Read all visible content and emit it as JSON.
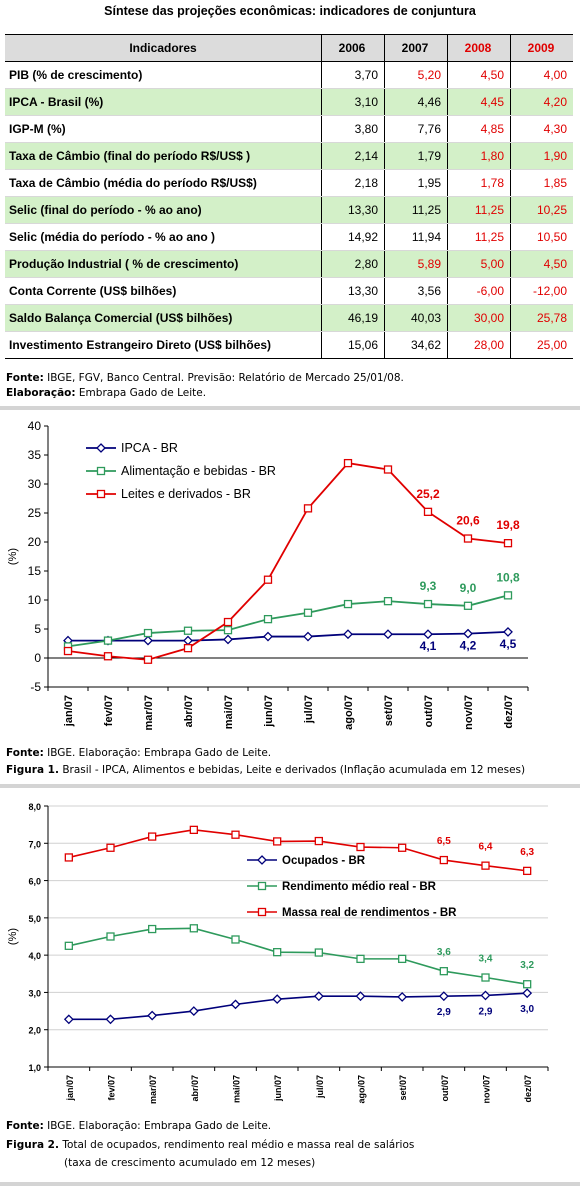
{
  "table": {
    "title": "Síntese das projeções econômicas: indicadores de conjuntura",
    "header": {
      "label": "Indicadores",
      "years": [
        "2006",
        "2007",
        "2008",
        "2009"
      ]
    },
    "rows": [
      {
        "label": "PIB (% de crescimento)",
        "values": [
          "3,70",
          "5,20",
          "4,50",
          "4,00"
        ],
        "red": [
          false,
          true,
          true,
          true
        ],
        "shaded": false
      },
      {
        "label": "IPCA - Brasil (%)",
        "values": [
          "3,10",
          "4,46",
          "4,45",
          "4,20"
        ],
        "red": [
          false,
          false,
          true,
          true
        ],
        "shaded": true
      },
      {
        "label": "IGP-M (%)",
        "values": [
          "3,80",
          "7,76",
          "4,85",
          "4,30"
        ],
        "red": [
          false,
          false,
          true,
          true
        ],
        "shaded": false
      },
      {
        "label": "Taxa de Câmbio (final do período R$/US$ )",
        "values": [
          "2,14",
          "1,79",
          "1,80",
          "1,90"
        ],
        "red": [
          false,
          false,
          true,
          true
        ],
        "shaded": true
      },
      {
        "label": "Taxa de Câmbio (média do período R$/US$)",
        "values": [
          "2,18",
          "1,95",
          "1,78",
          "1,85"
        ],
        "red": [
          false,
          false,
          true,
          true
        ],
        "shaded": false
      },
      {
        "label": "Selic (final do período - % ao ano)",
        "values": [
          "13,30",
          "11,25",
          "11,25",
          "10,25"
        ],
        "red": [
          false,
          false,
          true,
          true
        ],
        "shaded": true
      },
      {
        "label": "Selic (média do período - % ao ano )",
        "values": [
          "14,92",
          "11,94",
          "11,25",
          "10,50"
        ],
        "red": [
          false,
          false,
          true,
          true
        ],
        "shaded": false
      },
      {
        "label": "Produção Industrial ( % de crescimento)",
        "values": [
          "2,80",
          "5,89",
          "5,00",
          "4,50"
        ],
        "red": [
          false,
          true,
          true,
          true
        ],
        "shaded": true
      },
      {
        "label": "Conta Corrente (US$ bilhões)",
        "values": [
          "13,30",
          "3,56",
          "-6,00",
          "-12,00"
        ],
        "red": [
          false,
          false,
          true,
          true
        ],
        "shaded": false
      },
      {
        "label": "Saldo Balança Comercial (US$ bilhões)",
        "values": [
          "46,19",
          "40,03",
          "30,00",
          "25,78"
        ],
        "red": [
          false,
          false,
          true,
          true
        ],
        "shaded": true
      },
      {
        "label": "Investimento Estrangeiro Direto (US$ bilhões)",
        "values": [
          "15,06",
          "34,62",
          "28,00",
          "25,00"
        ],
        "red": [
          false,
          false,
          true,
          true
        ],
        "shaded": false
      }
    ],
    "source_label": "Fonte:",
    "source_text": " IBGE, FGV, Banco Central. Previsão: Relatório de Mercado 25/01/08.",
    "elab_label": "Elaboração:",
    "elab_text": " Embrapa Gado de Leite."
  },
  "colors": {
    "red": "#e00000",
    "green": "#2e9a5c",
    "navy": "#00007a",
    "grid": "#d0d0d0"
  },
  "chart_data": [
    {
      "type": "line",
      "ylabel": "(%)",
      "ylim": [
        -5,
        40
      ],
      "yticks": [
        -5,
        0,
        5,
        10,
        15,
        20,
        25,
        30,
        35,
        40
      ],
      "categories": [
        "jan/07",
        "fev/07",
        "mar/07",
        "abr/07",
        "mai/07",
        "jun/07",
        "jul/07",
        "ago/07",
        "set/07",
        "out/07",
        "nov/07",
        "dez/07"
      ],
      "series": [
        {
          "name": "IPCA - BR",
          "color": "#00007a",
          "marker": "diamond",
          "values": [
            3.0,
            3.0,
            3.0,
            3.0,
            3.2,
            3.7,
            3.7,
            4.1,
            4.1,
            4.1,
            4.2,
            4.5
          ]
        },
        {
          "name": "Alimentação e bebidas - BR",
          "color": "#2e9a5c",
          "marker": "square",
          "values": [
            2.0,
            3.0,
            4.3,
            4.7,
            4.8,
            6.7,
            7.8,
            9.3,
            9.8,
            9.3,
            9.0,
            10.8
          ]
        },
        {
          "name": "Leites e derivados - BR",
          "color": "#e00000",
          "marker": "square",
          "values": [
            1.2,
            0.3,
            -0.3,
            1.7,
            6.2,
            13.5,
            25.8,
            33.6,
            32.5,
            25.2,
            20.6,
            19.8
          ]
        }
      ],
      "annotations": [
        {
          "series": 2,
          "index": 9,
          "text": "25,2"
        },
        {
          "series": 2,
          "index": 10,
          "text": "20,6"
        },
        {
          "series": 2,
          "index": 11,
          "text": "19,8"
        },
        {
          "series": 1,
          "index": 9,
          "text": "9,3"
        },
        {
          "series": 1,
          "index": 10,
          "text": "9,0"
        },
        {
          "series": 1,
          "index": 11,
          "text": "10,8"
        },
        {
          "series": 0,
          "index": 9,
          "text": "4,1"
        },
        {
          "series": 0,
          "index": 10,
          "text": "4,2"
        },
        {
          "series": 0,
          "index": 11,
          "text": "4,5"
        }
      ],
      "legend_position": "top-left",
      "grid": false,
      "source_label": "Fonte:",
      "source_text": " IBGE. Elaboração: Embrapa Gado de Leite.",
      "caption_label": "Figura 1.",
      "caption_text": " Brasil - IPCA, Alimentos e bebidas, Leite e derivados (Inflação acumulada em 12 meses)"
    },
    {
      "type": "line",
      "ylabel": "(%)",
      "ylim": [
        1.0,
        8.0
      ],
      "yticks": [
        "1,0",
        "2,0",
        "3,0",
        "4,0",
        "5,0",
        "6,0",
        "7,0",
        "8,0"
      ],
      "categories": [
        "jan/07",
        "fev/07",
        "mar/07",
        "abr/07",
        "mai/07",
        "jun/07",
        "jul/07",
        "ago/07",
        "set/07",
        "out/07",
        "nov/07",
        "dez/07"
      ],
      "series": [
        {
          "name": "Ocupados - BR",
          "color": "#00007a",
          "marker": "diamond",
          "values": [
            2.28,
            2.28,
            2.38,
            2.5,
            2.68,
            2.82,
            2.9,
            2.9,
            2.88,
            2.9,
            2.92,
            2.98
          ]
        },
        {
          "name": "Rendimento médio real - BR",
          "color": "#2e9a5c",
          "marker": "square",
          "values": [
            4.25,
            4.5,
            4.7,
            4.72,
            4.42,
            4.08,
            4.07,
            3.9,
            3.9,
            3.57,
            3.4,
            3.22
          ]
        },
        {
          "name": "Massa real de rendimentos - BR",
          "color": "#e00000",
          "marker": "square",
          "values": [
            6.62,
            6.88,
            7.18,
            7.36,
            7.23,
            7.05,
            7.06,
            6.9,
            6.88,
            6.55,
            6.4,
            6.26
          ]
        }
      ],
      "annotations": [
        {
          "series": 2,
          "index": 9,
          "text": "6,5"
        },
        {
          "series": 2,
          "index": 10,
          "text": "6,4"
        },
        {
          "series": 2,
          "index": 11,
          "text": "6,3"
        },
        {
          "series": 1,
          "index": 9,
          "text": "3,6"
        },
        {
          "series": 1,
          "index": 10,
          "text": "3,4"
        },
        {
          "series": 1,
          "index": 11,
          "text": "3,2"
        },
        {
          "series": 0,
          "index": 9,
          "text": "2,9"
        },
        {
          "series": 0,
          "index": 10,
          "text": "2,9"
        },
        {
          "series": 0,
          "index": 11,
          "text": "3,0"
        }
      ],
      "legend_position": "right-center",
      "grid": true,
      "source_label": "Fonte:",
      "source_text": " IBGE. Elaboração: Embrapa Gado de Leite.",
      "caption_label": "Figura 2.",
      "caption_text": " Total de ocupados, rendimento real médio e massa real de salários",
      "caption_text2": "(taxa de crescimento acumulado em 12 meses)"
    }
  ]
}
